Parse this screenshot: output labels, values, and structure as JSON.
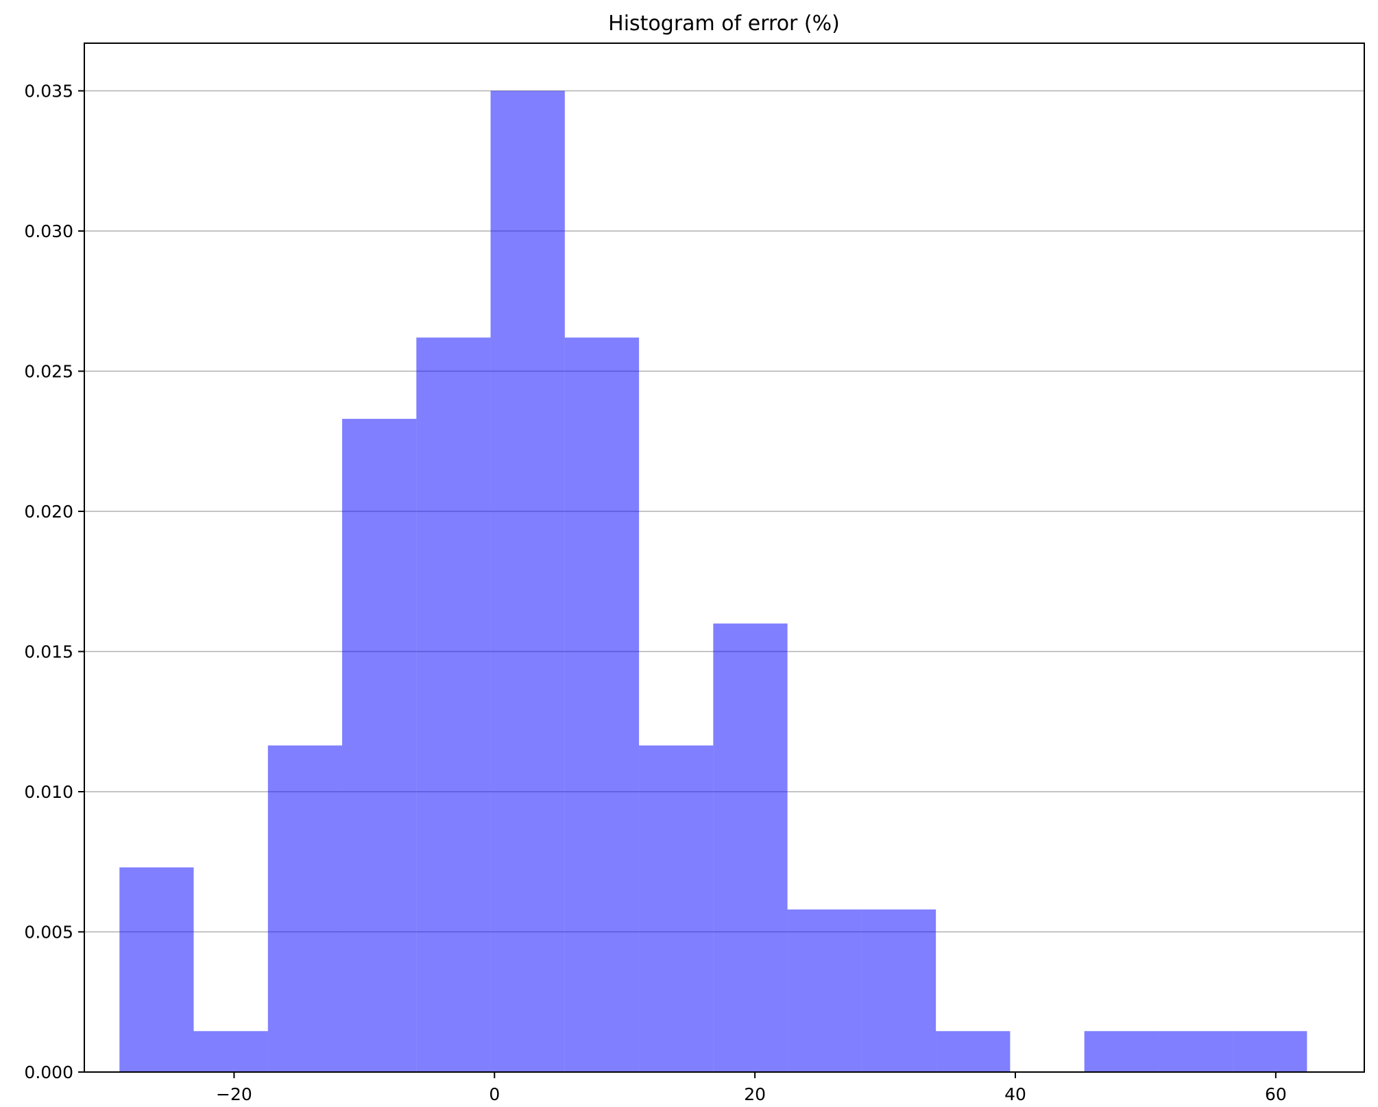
{
  "chart_data": {
    "type": "bar",
    "title": "Histogram of error (%)",
    "xlabel": "",
    "ylabel": "",
    "xlim": [
      -31.5,
      66.8
    ],
    "ylim": [
      0.0,
      0.0367
    ],
    "x_ticks": [
      {
        "value": -20,
        "label": "−20"
      },
      {
        "value": 0,
        "label": "0"
      },
      {
        "value": 20,
        "label": "20"
      },
      {
        "value": 40,
        "label": "40"
      },
      {
        "value": 60,
        "label": "60"
      }
    ],
    "y_ticks": [
      {
        "value": 0.0,
        "label": "0.000"
      },
      {
        "value": 0.005,
        "label": "0.005"
      },
      {
        "value": 0.01,
        "label": "0.010"
      },
      {
        "value": 0.015,
        "label": "0.015"
      },
      {
        "value": 0.02,
        "label": "0.020"
      },
      {
        "value": 0.025,
        "label": "0.025"
      },
      {
        "value": 0.03,
        "label": "0.030"
      },
      {
        "value": 0.035,
        "label": "0.035"
      }
    ],
    "grid": "y",
    "bar_color": "#0000ff",
    "bar_opacity": 0.5,
    "grid_color": "#b0b0b0",
    "bins": [
      {
        "x0": -28.8,
        "x1": -23.1,
        "value": 0.0073
      },
      {
        "x0": -23.1,
        "x1": -17.4,
        "value": 0.00146
      },
      {
        "x0": -17.4,
        "x1": -11.7,
        "value": 0.01165
      },
      {
        "x0": -11.7,
        "x1": -6.0,
        "value": 0.0233
      },
      {
        "x0": -6.0,
        "x1": -0.3,
        "value": 0.0262
      },
      {
        "x0": -0.3,
        "x1": 5.4,
        "value": 0.035
      },
      {
        "x0": 5.4,
        "x1": 11.1,
        "value": 0.0262
      },
      {
        "x0": 11.1,
        "x1": 16.8,
        "value": 0.01165
      },
      {
        "x0": 16.8,
        "x1": 22.5,
        "value": 0.016
      },
      {
        "x0": 22.5,
        "x1": 28.2,
        "value": 0.0058
      },
      {
        "x0": 28.2,
        "x1": 33.9,
        "value": 0.0058
      },
      {
        "x0": 33.9,
        "x1": 39.6,
        "value": 0.00146
      },
      {
        "x0": 39.6,
        "x1": 45.3,
        "value": 0.0
      },
      {
        "x0": 45.3,
        "x1": 51.0,
        "value": 0.00146
      },
      {
        "x0": 51.0,
        "x1": 56.7,
        "value": 0.00146
      },
      {
        "x0": 56.7,
        "x1": 62.4,
        "value": 0.00146
      }
    ]
  }
}
